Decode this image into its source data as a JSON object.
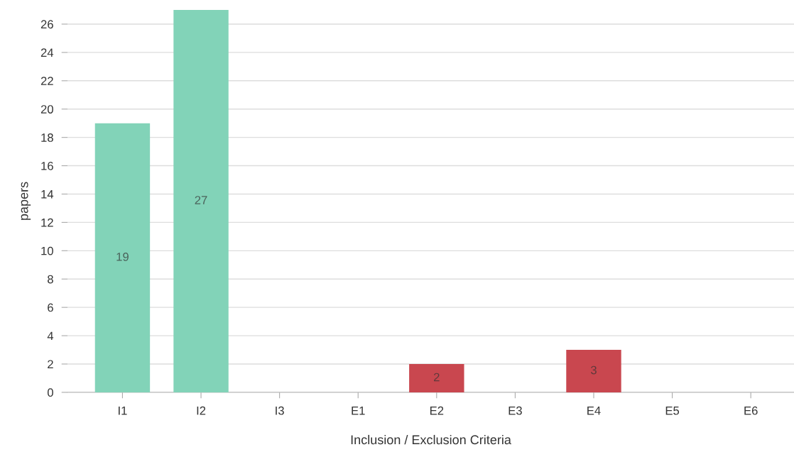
{
  "chart_data": {
    "type": "bar",
    "xlabel": "Inclusion / Exclusion Criteria",
    "ylabel": "papers",
    "categories": [
      "I1",
      "I2",
      "I3",
      "E1",
      "E2",
      "E3",
      "E4",
      "E5",
      "E6"
    ],
    "values": [
      19,
      27,
      0,
      0,
      2,
      0,
      3,
      0,
      0
    ],
    "colors": [
      "#82d3b8",
      "#82d3b8",
      "#82d3b8",
      "#c9474f",
      "#c9474f",
      "#c9474f",
      "#c9474f",
      "#c9474f",
      "#c9474f"
    ],
    "value_labels": [
      "19",
      "27",
      null,
      null,
      "2",
      null,
      "3",
      null,
      null
    ],
    "ylim": [
      0,
      27
    ],
    "yticks": [
      0,
      2,
      4,
      6,
      8,
      10,
      12,
      14,
      16,
      18,
      20,
      22,
      24,
      26
    ],
    "grid": "y"
  }
}
